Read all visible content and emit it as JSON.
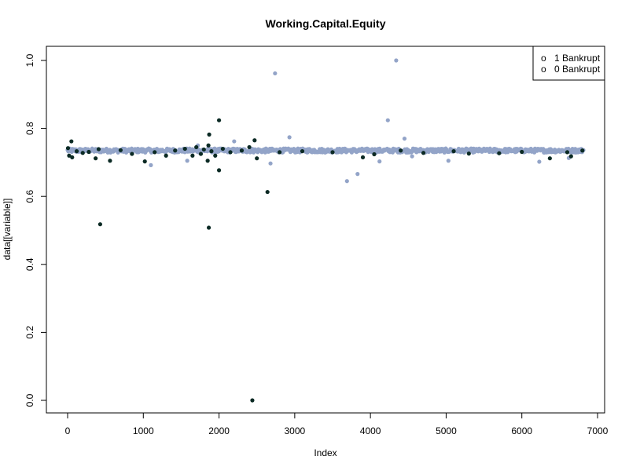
{
  "chart_data": {
    "type": "scatter",
    "title": "Working.Capital.Equity",
    "xlabel": "Index",
    "ylabel": "data[[variable]]",
    "xlim": [
      0,
      7000
    ],
    "ylim": [
      0,
      1
    ],
    "x_ticks": [
      0,
      1000,
      2000,
      3000,
      4000,
      5000,
      6000,
      7000
    ],
    "y_ticks": [
      0.0,
      0.2,
      0.4,
      0.6,
      0.8,
      1.0
    ],
    "x_tick_labels": [
      "0",
      "1000",
      "2000",
      "3000",
      "4000",
      "5000",
      "6000",
      "7000"
    ],
    "y_tick_labels": [
      "0.0",
      "0.2",
      "0.4",
      "0.6",
      "0.8",
      "1.0"
    ],
    "grid": false,
    "legend": {
      "position": "top-right",
      "entries": [
        {
          "label": "1 Bankrupt",
          "marker": "o"
        },
        {
          "label": "0 Bankrupt",
          "marker": "o"
        }
      ]
    },
    "colors": {
      "bankrupt_1": "#0b2a24",
      "bankrupt_0": "#93a4c8"
    },
    "series": [
      {
        "name": "0 Bankrupt",
        "color": "#93a4c8",
        "band": {
          "x_start": 0,
          "x_end": 6819,
          "y_center": 0.735,
          "y_spread": 0.006
        },
        "outliers": [
          {
            "x": 1100,
            "y": 0.692
          },
          {
            "x": 1580,
            "y": 0.705
          },
          {
            "x": 1720,
            "y": 0.75
          },
          {
            "x": 2200,
            "y": 0.762
          },
          {
            "x": 2680,
            "y": 0.697
          },
          {
            "x": 2740,
            "y": 0.962
          },
          {
            "x": 2930,
            "y": 0.774
          },
          {
            "x": 3690,
            "y": 0.645
          },
          {
            "x": 3830,
            "y": 0.666
          },
          {
            "x": 4120,
            "y": 0.703
          },
          {
            "x": 4230,
            "y": 0.824
          },
          {
            "x": 4340,
            "y": 1.0
          },
          {
            "x": 4450,
            "y": 0.77
          },
          {
            "x": 4550,
            "y": 0.718
          },
          {
            "x": 5030,
            "y": 0.705
          },
          {
            "x": 6230,
            "y": 0.702
          },
          {
            "x": 6620,
            "y": 0.713
          }
        ]
      },
      {
        "name": "1 Bankrupt",
        "color": "#0b2a24",
        "points": [
          {
            "x": 5,
            "y": 0.742
          },
          {
            "x": 20,
            "y": 0.72
          },
          {
            "x": 50,
            "y": 0.762
          },
          {
            "x": 60,
            "y": 0.715
          },
          {
            "x": 120,
            "y": 0.733
          },
          {
            "x": 200,
            "y": 0.728
          },
          {
            "x": 280,
            "y": 0.731
          },
          {
            "x": 370,
            "y": 0.712
          },
          {
            "x": 410,
            "y": 0.739
          },
          {
            "x": 430,
            "y": 0.518
          },
          {
            "x": 560,
            "y": 0.705
          },
          {
            "x": 700,
            "y": 0.736
          },
          {
            "x": 850,
            "y": 0.725
          },
          {
            "x": 1020,
            "y": 0.703
          },
          {
            "x": 1150,
            "y": 0.73
          },
          {
            "x": 1300,
            "y": 0.72
          },
          {
            "x": 1420,
            "y": 0.735
          },
          {
            "x": 1550,
            "y": 0.74
          },
          {
            "x": 1650,
            "y": 0.72
          },
          {
            "x": 1700,
            "y": 0.745
          },
          {
            "x": 1760,
            "y": 0.725
          },
          {
            "x": 1800,
            "y": 0.738
          },
          {
            "x": 1850,
            "y": 0.705
          },
          {
            "x": 1860,
            "y": 0.75
          },
          {
            "x": 1865,
            "y": 0.508
          },
          {
            "x": 1870,
            "y": 0.782
          },
          {
            "x": 1900,
            "y": 0.733
          },
          {
            "x": 1950,
            "y": 0.72
          },
          {
            "x": 2000,
            "y": 0.824
          },
          {
            "x": 2000,
            "y": 0.677
          },
          {
            "x": 2050,
            "y": 0.74
          },
          {
            "x": 2150,
            "y": 0.73
          },
          {
            "x": 2300,
            "y": 0.735
          },
          {
            "x": 2400,
            "y": 0.745
          },
          {
            "x": 2440,
            "y": 0.0
          },
          {
            "x": 2470,
            "y": 0.765
          },
          {
            "x": 2500,
            "y": 0.712
          },
          {
            "x": 2640,
            "y": 0.613
          },
          {
            "x": 2800,
            "y": 0.73
          },
          {
            "x": 3100,
            "y": 0.733
          },
          {
            "x": 3500,
            "y": 0.73
          },
          {
            "x": 3900,
            "y": 0.715
          },
          {
            "x": 4050,
            "y": 0.724
          },
          {
            "x": 4400,
            "y": 0.735
          },
          {
            "x": 4700,
            "y": 0.728
          },
          {
            "x": 5100,
            "y": 0.733
          },
          {
            "x": 5300,
            "y": 0.726
          },
          {
            "x": 5700,
            "y": 0.727
          },
          {
            "x": 6000,
            "y": 0.731
          },
          {
            "x": 6370,
            "y": 0.712
          },
          {
            "x": 6600,
            "y": 0.73
          },
          {
            "x": 6650,
            "y": 0.718
          },
          {
            "x": 6800,
            "y": 0.735
          }
        ]
      }
    ]
  }
}
